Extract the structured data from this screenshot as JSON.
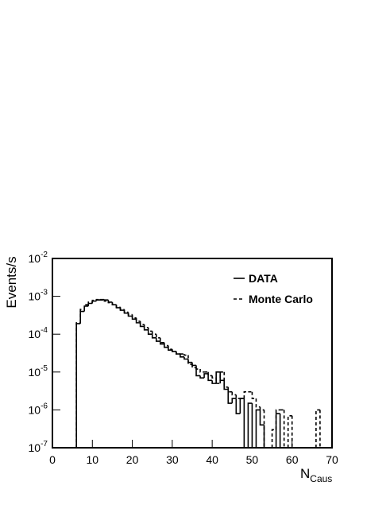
{
  "chart_data": {
    "type": "histogram",
    "xlabel": "N",
    "xlabel_subscript": "Caus",
    "ylabel": "Events/s",
    "log_y": true,
    "xlim": [
      0,
      70
    ],
    "xticks": [
      0,
      10,
      20,
      30,
      40,
      50,
      60,
      70
    ],
    "ylim": [
      1e-07,
      0.01
    ],
    "yticks": [
      {
        "value": 1e-07,
        "label": "10",
        "exponent": "-7"
      },
      {
        "value": 1e-06,
        "label": "10",
        "exponent": "-6"
      },
      {
        "value": 1e-05,
        "label": "10",
        "exponent": "-5"
      },
      {
        "value": 0.0001,
        "label": "10",
        "exponent": "-4"
      },
      {
        "value": 0.001,
        "label": "10",
        "exponent": "-3"
      },
      {
        "value": 0.01,
        "label": "10",
        "exponent": "-2"
      }
    ],
    "legend": "top-right",
    "bins": [
      6,
      7,
      8,
      9,
      10,
      11,
      12,
      13,
      14,
      15,
      16,
      17,
      18,
      19,
      20,
      21,
      22,
      23,
      24,
      25,
      26,
      27,
      28,
      29,
      30,
      31,
      32,
      33,
      34,
      35,
      36,
      37,
      38,
      39,
      40,
      41,
      42,
      43,
      44,
      45,
      46,
      47,
      48,
      49,
      50,
      51,
      52,
      53,
      54,
      55,
      56,
      57,
      58,
      59,
      60,
      61,
      62,
      63,
      64,
      65,
      66,
      67,
      68
    ],
    "series": [
      {
        "name": "DATA",
        "color": "#000000",
        "dash": "solid",
        "values": [
          0.00019,
          0.0004,
          0.00055,
          0.00065,
          0.00075,
          0.0008,
          0.00082,
          0.0008,
          0.0007,
          0.0006,
          0.0005,
          0.00043,
          0.00036,
          0.0003,
          0.00025,
          0.0002,
          0.00016,
          0.00013,
          0.0001,
          8e-05,
          6.5e-05,
          5.5e-05,
          4.5e-05,
          3.8e-05,
          3.5e-05,
          3e-05,
          2.5e-05,
          2.2e-05,
          1.8e-05,
          1.5e-05,
          8e-06,
          7e-06,
          9e-06,
          6e-06,
          5e-06,
          1e-05,
          6e-06,
          3.5e-06,
          1.5e-06,
          2e-06,
          8e-07,
          2e-06,
          0,
          1.5e-06,
          0,
          1e-06,
          4e-07,
          0,
          0,
          0,
          8e-07,
          0,
          0,
          0,
          0,
          0,
          0,
          0,
          0,
          0,
          0,
          0
        ]
      },
      {
        "name": "Monte Carlo",
        "color": "#000000",
        "dash": "dashed",
        "values": [
          0.0002,
          0.00045,
          0.0006,
          0.0007,
          0.00078,
          0.00082,
          0.0008,
          0.00075,
          0.00068,
          0.0006,
          0.00052,
          0.00045,
          0.00038,
          0.00033,
          0.00027,
          0.00022,
          0.00018,
          0.00015,
          0.00012,
          0.0001,
          8e-05,
          6e-05,
          5e-05,
          4e-05,
          3.5e-05,
          3e-05,
          3e-05,
          2.8e-05,
          1.6e-05,
          1.3e-05,
          1.2e-05,
          1e-05,
          1e-05,
          8e-06,
          7e-06,
          5e-06,
          1e-05,
          4e-06,
          3e-06,
          2.5e-06,
          2e-06,
          2e-06,
          3e-06,
          3e-06,
          2e-06,
          1.2e-06,
          1e-06,
          0,
          0,
          3e-07,
          1e-06,
          1e-06,
          0,
          7e-07,
          0,
          0,
          0,
          0,
          0,
          0,
          1e-06,
          0
        ]
      }
    ]
  }
}
